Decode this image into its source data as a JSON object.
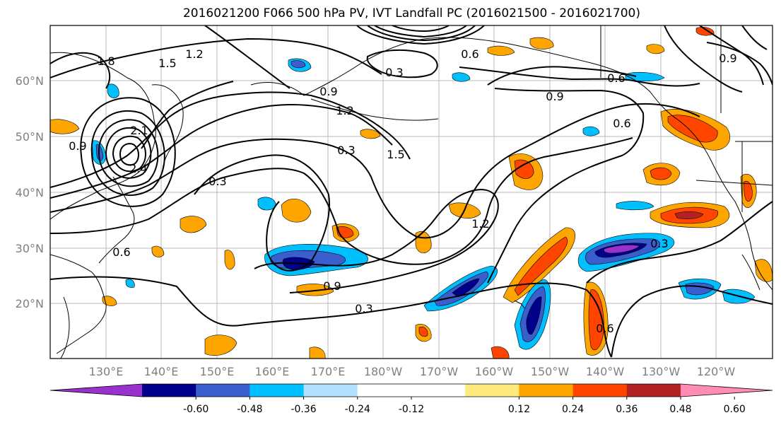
{
  "title": "2016021200 F066 500 hPa PV, IVT Landfall PC (2016021500 - 2016021700)",
  "lat_labels": [
    "60°N",
    "50°N",
    "40°N",
    "30°N",
    "20°N"
  ],
  "lon_labels": [
    "130°E",
    "140°E",
    "150°E",
    "160°E",
    "170°E",
    "180°W",
    "170°W",
    "160°W",
    "150°W",
    "140°W",
    "130°W",
    "120°W"
  ],
  "colorbar": {
    "colors": [
      "#9932CC",
      "#00008B",
      "#3A5FCD",
      "#00BFFF",
      "#B2E2FF",
      "#FFFFFF",
      "#FFFFFF",
      "#FFEA80",
      "#FFA500",
      "#FF4500",
      "#B22222",
      "#FF8CB4"
    ],
    "ticks": [
      "-0.60",
      "-0.48",
      "-0.36",
      "-0.24",
      "-0.12",
      "0.12",
      "0.24",
      "0.36",
      "0.48",
      "0.60"
    ]
  },
  "contour_labels": [
    "1.2",
    "1.5",
    "0.3",
    "0.9",
    "1.2",
    "1.5",
    "0.3",
    "0.6",
    "0.9",
    "0.6",
    "0.3",
    "0.6",
    "0.9",
    "0.3",
    "1.2",
    "0.6",
    "0.9",
    "2.1",
    "2.4",
    "1.8",
    "0.9",
    "0.3",
    "0.6"
  ]
}
